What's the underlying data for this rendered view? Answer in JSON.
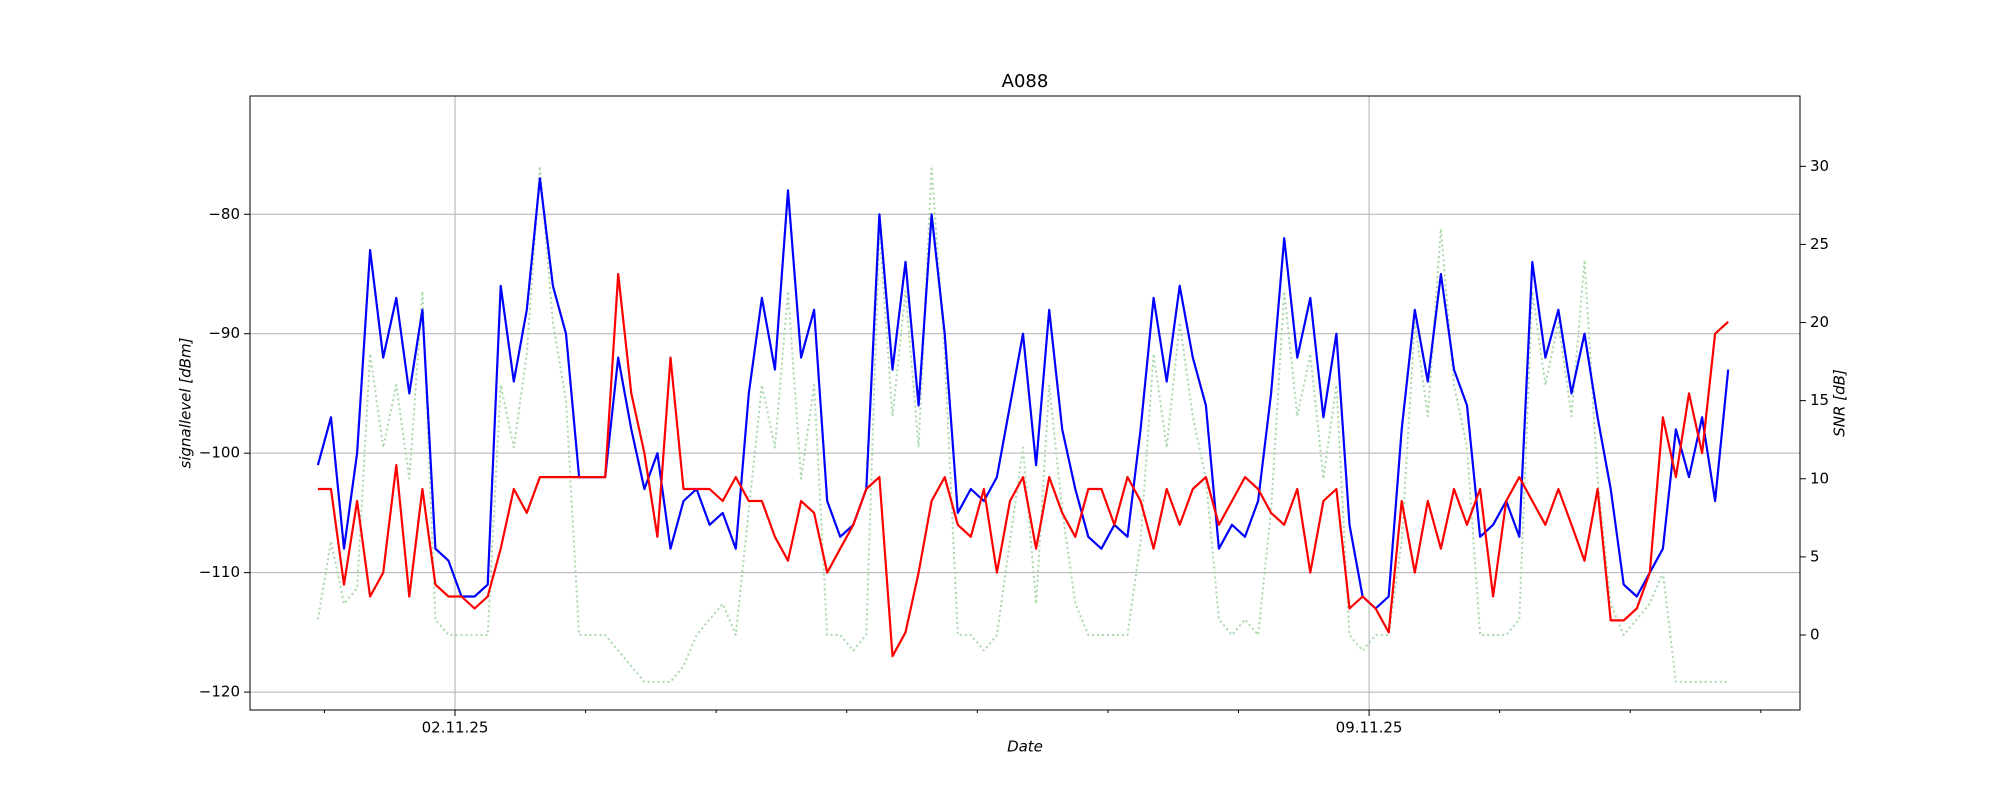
{
  "chart_data": {
    "type": "line",
    "title": "A088",
    "xlabel": "Date",
    "ylabel": "signallevel [dBm]",
    "y2label": "SNR [dB]",
    "x": [
      0.95,
      1.05,
      1.15,
      1.25,
      1.35,
      1.45,
      1.55,
      1.65,
      1.75,
      1.85,
      1.95,
      2.05,
      2.15,
      2.25,
      2.35,
      2.45,
      2.55,
      2.65,
      2.75,
      2.85,
      2.95,
      3.05,
      3.15,
      3.25,
      3.35,
      3.45,
      3.55,
      3.65,
      3.75,
      3.85,
      3.95,
      4.05,
      4.15,
      4.25,
      4.35,
      4.45,
      4.55,
      4.65,
      4.75,
      4.85,
      4.95,
      5.05,
      5.15,
      5.25,
      5.35,
      5.45,
      5.55,
      5.65,
      5.75,
      5.85,
      5.95,
      6.05,
      6.15,
      6.25,
      6.35,
      6.45,
      6.55,
      6.65,
      6.75,
      6.85,
      6.95,
      7.05,
      7.15,
      7.25,
      7.35,
      7.45,
      7.55,
      7.65,
      7.75,
      7.85,
      7.95,
      8.05,
      8.15,
      8.25,
      8.35,
      8.45,
      8.55,
      8.65,
      8.75,
      8.85,
      8.95,
      9.05,
      9.15,
      9.25,
      9.35,
      9.45,
      9.55,
      9.65,
      9.75,
      9.85,
      9.95,
      10.05,
      10.15,
      10.25,
      10.35,
      10.45,
      10.55,
      10.65,
      10.75,
      10.85,
      10.95,
      11.05,
      11.15,
      11.25,
      11.35,
      11.45,
      11.55,
      11.65,
      11.75
    ],
    "series": [
      {
        "color": "#aad8aa",
        "linestyle": "dotted",
        "axis": "y2",
        "values": [
          1,
          6,
          2,
          3,
          18,
          12,
          16,
          10,
          22,
          1,
          0,
          0,
          0,
          0,
          16,
          12,
          18,
          30,
          20,
          15,
          0,
          0,
          0,
          -1,
          -2,
          -3,
          -3,
          -3,
          -2,
          0,
          1,
          2,
          0,
          8,
          16,
          12,
          22,
          10,
          16,
          0,
          0,
          -1,
          0,
          26,
          14,
          22,
          12,
          30,
          18,
          0,
          0,
          -1,
          0,
          6,
          12,
          2,
          16,
          8,
          2,
          0,
          0,
          0,
          0,
          6,
          18,
          12,
          20,
          14,
          10,
          1,
          0,
          1,
          0,
          8,
          22,
          14,
          18,
          10,
          16,
          0,
          -1,
          0,
          0,
          6,
          20,
          14,
          26,
          16,
          12,
          0,
          0,
          0,
          1,
          22,
          16,
          20,
          14,
          24,
          10,
          2,
          0,
          1,
          2,
          4,
          -3,
          -3,
          -3,
          -3,
          -3
        ]
      },
      {
        "color": "#0000ff",
        "linestyle": "solid",
        "values": [
          -101,
          -97,
          -108,
          -100,
          -83,
          -92,
          -87,
          -95,
          -88,
          -108,
          -109,
          -112,
          -112,
          -111,
          -86,
          -94,
          -88,
          -77,
          -86,
          -90,
          -102,
          -102,
          -102,
          -92,
          -98,
          -103,
          -100,
          -108,
          -104,
          -103,
          -106,
          -105,
          -108,
          -95,
          -87,
          -93,
          -78,
          -92,
          -88,
          -104,
          -107,
          -106,
          -103,
          -80,
          -93,
          -84,
          -96,
          -80,
          -90,
          -105,
          -103,
          -104,
          -102,
          -96,
          -90,
          -101,
          -88,
          -98,
          -103,
          -107,
          -108,
          -106,
          -107,
          -98,
          -87,
          -94,
          -86,
          -92,
          -96,
          -108,
          -106,
          -107,
          -104,
          -95,
          -82,
          -92,
          -87,
          -97,
          -90,
          -106,
          -112,
          -113,
          -112,
          -98,
          -88,
          -94,
          -85,
          -93,
          -96,
          -107,
          -106,
          -104,
          -107,
          -84,
          -92,
          -88,
          -95,
          -90,
          -97,
          -103,
          -111,
          -112,
          -110,
          -108,
          -98,
          -102,
          -97,
          -104,
          -93
        ]
      },
      {
        "color": "#ff0000",
        "linestyle": "solid",
        "values": [
          -103,
          -103,
          -111,
          -104,
          -112,
          -110,
          -101,
          -112,
          -103,
          -111,
          -112,
          -112,
          -113,
          -112,
          -108,
          -103,
          -105,
          -102,
          -102,
          -102,
          -102,
          -102,
          -102,
          -85,
          -95,
          -100,
          -107,
          -92,
          -103,
          -103,
          -103,
          -104,
          -102,
          -104,
          -104,
          -107,
          -109,
          -104,
          -105,
          -110,
          -108,
          -106,
          -103,
          -102,
          -117,
          -115,
          -110,
          -104,
          -102,
          -106,
          -107,
          -103,
          -110,
          -104,
          -102,
          -108,
          -102,
          -105,
          -107,
          -103,
          -103,
          -106,
          -102,
          -104,
          -108,
          -103,
          -106,
          -103,
          -102,
          -106,
          -104,
          -102,
          -103,
          -105,
          -106,
          -103,
          -110,
          -104,
          -103,
          -113,
          -112,
          -113,
          -115,
          -104,
          -110,
          -104,
          -108,
          -103,
          -106,
          -103,
          -112,
          -104,
          -102,
          -104,
          -106,
          -103,
          -106,
          -109,
          -103,
          -114,
          -114,
          -113,
          -110,
          -97,
          -102,
          -95,
          -100,
          -90,
          -89
        ]
      }
    ],
    "xlim": [
      0.43,
      12.3
    ],
    "xticks": [
      {
        "value": 2,
        "label": "02.11.25"
      },
      {
        "value": 9,
        "label": "09.11.25"
      }
    ],
    "xminorticks": [
      1,
      3,
      4,
      5,
      6,
      7,
      8,
      10,
      11,
      12
    ],
    "ylim": [
      -121.5,
      -70.1
    ],
    "yticks": [
      {
        "value": -120,
        "label": "−120"
      },
      {
        "value": -110,
        "label": "−110"
      },
      {
        "value": -100,
        "label": "−100"
      },
      {
        "value": -90,
        "label": "−90"
      },
      {
        "value": -80,
        "label": "−80"
      }
    ],
    "y2lim": [
      -4.8,
      34.5
    ],
    "y2ticks": [
      0,
      5,
      10,
      15,
      20,
      25,
      30
    ],
    "grid": true
  }
}
